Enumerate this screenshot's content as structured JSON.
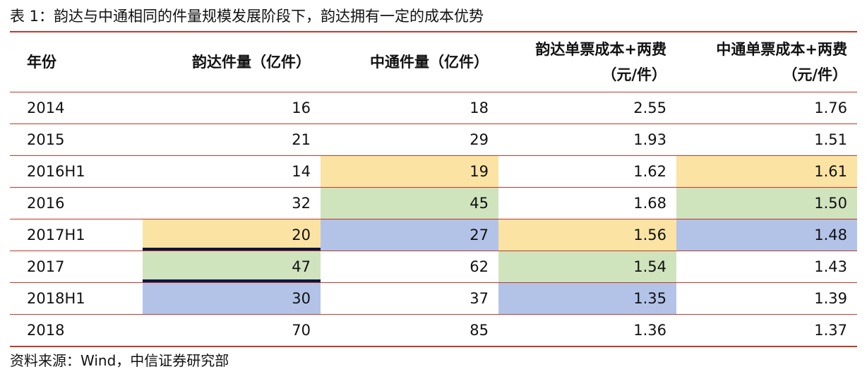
{
  "title": "表 1：韵达与中通相同的件量规模发展阶段下，韵达拥有一定的成本优势",
  "headers": {
    "year": "年份",
    "yunda_volume": "韵达件量（亿件）",
    "zto_volume": "中通件量（亿件）",
    "yunda_cost_line1": "韵达单票成本+两费",
    "yunda_cost_line2": "（元/件）",
    "zto_cost_line1": "中通单票成本+两费",
    "zto_cost_line2": "（元/件）"
  },
  "rows": [
    {
      "year": "2014",
      "yunda_volume": "16",
      "zto_volume": "18",
      "yunda_cost": "2.55",
      "zto_cost": "1.76"
    },
    {
      "year": "2015",
      "yunda_volume": "21",
      "zto_volume": "29",
      "yunda_cost": "1.93",
      "zto_cost": "1.51"
    },
    {
      "year": "2016H1",
      "yunda_volume": "14",
      "zto_volume": "19",
      "yunda_cost": "1.62",
      "zto_cost": "1.61"
    },
    {
      "year": "2016",
      "yunda_volume": "32",
      "zto_volume": "45",
      "yunda_cost": "1.68",
      "zto_cost": "1.50"
    },
    {
      "year": "2017H1",
      "yunda_volume": "20",
      "zto_volume": "27",
      "yunda_cost": "1.56",
      "zto_cost": "1.48"
    },
    {
      "year": "2017",
      "yunda_volume": "47",
      "zto_volume": "62",
      "yunda_cost": "1.54",
      "zto_cost": "1.43"
    },
    {
      "year": "2018H1",
      "yunda_volume": "30",
      "zto_volume": "37",
      "yunda_cost": "1.35",
      "zto_cost": "1.39"
    },
    {
      "year": "2018",
      "yunda_volume": "70",
      "zto_volume": "85",
      "yunda_cost": "1.36",
      "zto_cost": "1.37"
    }
  ],
  "highlight_colors": {
    "yellow": "#fbe3a3",
    "green": "#cfe3bd",
    "blue": "#b3c3e8",
    "rule": "#c0392b"
  },
  "source": "资料来源：Wind，中信证券研究部"
}
